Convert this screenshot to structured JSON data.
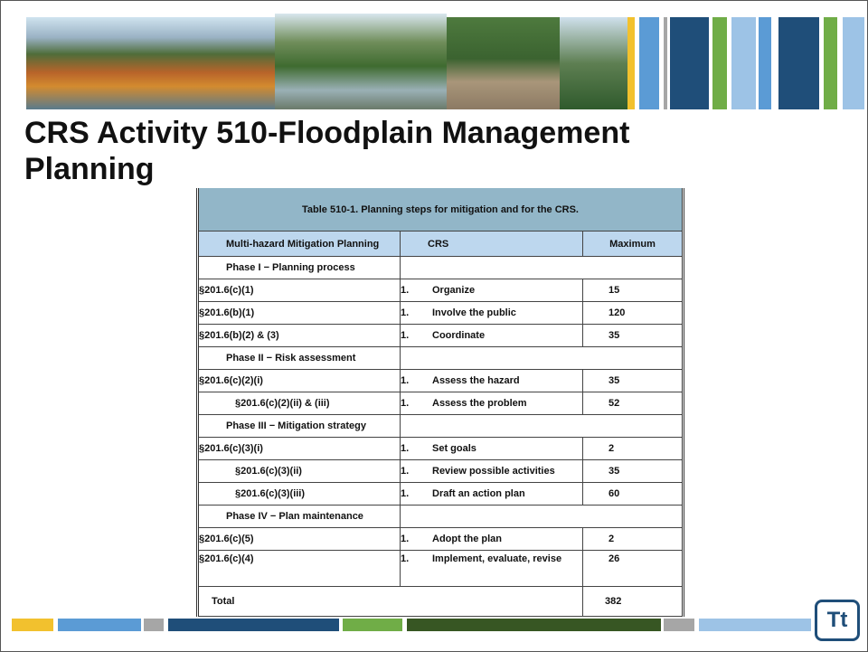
{
  "title": "CRS Activity 510-Floodplain Management Planning",
  "table": {
    "caption": "Table 510-1. Planning steps for mitigation and for the CRS.",
    "headers": [
      "Multi-hazard Mitigation Planning",
      "CRS",
      "Maximum"
    ],
    "rows": [
      [
        "Phase I − Planning process"
      ],
      [
        "§201.6(c)(1)",
        "1.",
        "Organize",
        "15"
      ],
      [
        "§201.6(b)(1)",
        "1.",
        "Involve the public",
        "120"
      ],
      [
        "§201.6(b)(2) & (3)",
        "1.",
        "Coordinate",
        "35"
      ],
      [
        "Phase II − Risk assessment"
      ],
      [
        "§201.6(c)(2)(i)",
        "1.",
        "Assess the hazard",
        "35"
      ],
      [
        "§201.6(c)(2)(ii) & (iii)",
        "1.",
        "Assess the problem",
        "52"
      ],
      [
        "Phase III − Mitigation strategy"
      ],
      [
        "§201.6(c)(3)(i)",
        "1.",
        "Set goals",
        "2"
      ],
      [
        "§201.6(c)(3)(ii)",
        "1.",
        "Review possible activities",
        "35"
      ],
      [
        "§201.6(c)(3)(iii)",
        "1.",
        "Draft an action plan",
        "60"
      ],
      [
        "Phase IV − Plan maintenance"
      ],
      [
        "§201.6(c)(5)",
        "1.",
        "Adopt the plan",
        "2"
      ],
      [
        "§201.6(c)(4)",
        "1.",
        "Implement, evaluate, revise",
        "26"
      ]
    ],
    "total": [
      "Total",
      "382"
    ]
  },
  "logo": "Tt"
}
